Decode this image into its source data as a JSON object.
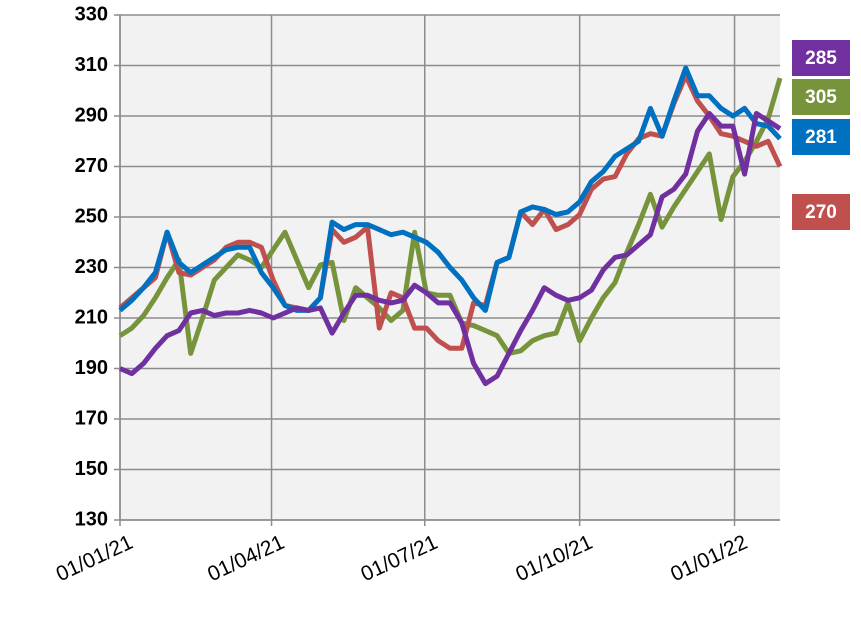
{
  "chart_data": {
    "type": "line",
    "x": [
      "01/01/21",
      "08/01/21",
      "15/01/21",
      "22/01/21",
      "29/01/21",
      "05/02/21",
      "12/02/21",
      "19/02/21",
      "26/02/21",
      "05/03/21",
      "12/03/21",
      "19/03/21",
      "26/03/21",
      "02/04/21",
      "09/04/21",
      "16/04/21",
      "23/04/21",
      "30/04/21",
      "07/05/21",
      "14/05/21",
      "21/05/21",
      "28/05/21",
      "04/06/21",
      "11/06/21",
      "18/06/21",
      "25/06/21",
      "02/07/21",
      "09/07/21",
      "16/07/21",
      "23/07/21",
      "30/07/21",
      "06/08/21",
      "13/08/21",
      "20/08/21",
      "27/08/21",
      "03/09/21",
      "10/09/21",
      "17/09/21",
      "24/09/21",
      "01/10/21",
      "08/10/21",
      "15/10/21",
      "22/10/21",
      "29/10/21",
      "05/11/21",
      "12/11/21",
      "19/11/21",
      "26/11/21",
      "03/12/21",
      "10/12/21",
      "17/12/21",
      "24/12/21",
      "31/12/21",
      "07/01/22",
      "14/01/22",
      "21/01/22",
      "28/01/22"
    ],
    "series": [
      {
        "color": "#0070c0",
        "values": [
          213,
          217,
          222,
          228,
          244,
          232,
          228,
          231,
          234,
          237,
          238,
          238,
          228,
          222,
          215,
          213,
          213,
          218,
          248,
          245,
          247,
          247,
          245,
          243,
          244,
          242,
          240,
          236,
          230,
          225,
          218,
          213,
          232,
          234,
          252,
          254,
          253,
          251,
          252,
          256,
          264,
          268,
          274,
          277,
          280,
          293,
          282,
          296,
          309,
          298,
          298,
          293,
          290,
          293,
          287,
          286,
          281
        ]
      },
      {
        "color": "#c0504d",
        "values": [
          214,
          218,
          222,
          226,
          244,
          228,
          227,
          230,
          233,
          238,
          240,
          240,
          238,
          225,
          215,
          214,
          213,
          218,
          245,
          240,
          242,
          246,
          206,
          220,
          218,
          206,
          206,
          201,
          198,
          198,
          216,
          215,
          232,
          234,
          252,
          247,
          253,
          245,
          247,
          251,
          261,
          265,
          266,
          275,
          281,
          283,
          282,
          295,
          306,
          296,
          290,
          283,
          282,
          280,
          278,
          280,
          270
        ]
      },
      {
        "color": "#77933c",
        "values": [
          203,
          206,
          211,
          218,
          226,
          233,
          196,
          210,
          225,
          230,
          235,
          233,
          230,
          237,
          244,
          233,
          222,
          231,
          232,
          209,
          222,
          218,
          214,
          209,
          213,
          244,
          220,
          219,
          219,
          208,
          207,
          205,
          203,
          196,
          197,
          201,
          203,
          204,
          216,
          201,
          210,
          218,
          224,
          236,
          247,
          259,
          246,
          254,
          261,
          268,
          275,
          249,
          266,
          272,
          280,
          289,
          305
        ]
      },
      {
        "color": "#7030a0",
        "values": [
          190,
          188,
          192,
          198,
          203,
          205,
          212,
          213,
          211,
          212,
          212,
          213,
          212,
          210,
          212,
          214,
          213,
          214,
          204,
          212,
          219,
          219,
          217,
          216,
          217,
          223,
          220,
          216,
          216,
          208,
          192,
          184,
          187,
          196,
          205,
          213,
          222,
          219,
          217,
          218,
          221,
          229,
          234,
          235,
          239,
          243,
          258,
          261,
          267,
          284,
          291,
          286,
          286,
          267,
          291,
          288,
          285
        ]
      }
    ],
    "xlim": [
      "01/01/21",
      "28/01/22"
    ],
    "xticks": [
      "01/01/21",
      "01/04/21",
      "01/07/21",
      "01/10/21",
      "01/01/22"
    ],
    "ylim": [
      130,
      330
    ],
    "yticks": [
      130,
      150,
      170,
      190,
      210,
      230,
      250,
      270,
      290,
      310,
      330
    ],
    "grid": true
  }
}
